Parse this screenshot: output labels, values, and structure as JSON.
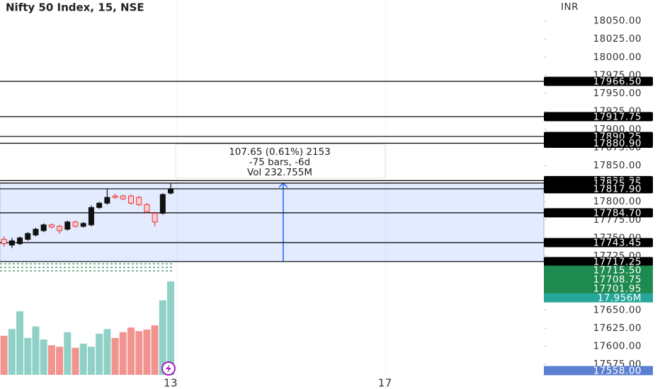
{
  "chart_data": {
    "type": "candlestick",
    "title": "Nifty 50 Index, 15, NSE",
    "currency": "INR",
    "up_color": "#111111",
    "down_color": "#e53935",
    "volume_up_color": "#8fd1c6",
    "volume_down_color": "#f1938f",
    "xlim": [
      -0.5,
      68
    ],
    "xticks": [
      {
        "value": 21,
        "label": "13"
      },
      {
        "value": 48,
        "label": "17"
      }
    ],
    "ylim": [
      17541,
      18079
    ],
    "yticks": [
      {
        "value": 18050,
        "label": "18050.00"
      },
      {
        "value": 18025,
        "label": "18025.00"
      },
      {
        "value": 18000,
        "label": "18000.00"
      },
      {
        "value": 17975,
        "label": "17975.00"
      },
      {
        "value": 17950,
        "label": "17950.00"
      },
      {
        "value": 17925,
        "label": "17925.00"
      },
      {
        "value": 17900,
        "label": "17900.00"
      },
      {
        "value": 17875,
        "label": "17875.00"
      },
      {
        "value": 17850,
        "label": "17850.00"
      },
      {
        "value": 17825,
        "label": "17825.00"
      },
      {
        "value": 17800,
        "label": "17800.00"
      },
      {
        "value": 17775,
        "label": "17775.00"
      },
      {
        "value": 17750,
        "label": "17750.00"
      },
      {
        "value": 17725,
        "label": "17725.00"
      },
      {
        "value": 17700,
        "label": "17700.00"
      },
      {
        "value": 17675,
        "label": "17675.00"
      },
      {
        "value": 17650,
        "label": "17650.00"
      },
      {
        "value": 17625,
        "label": "17625.00"
      },
      {
        "value": 17600,
        "label": "17600.00"
      },
      {
        "value": 17575,
        "label": "17575.00"
      }
    ],
    "grid": false,
    "open": [
      17748,
      17740,
      17742,
      17748,
      17754,
      17760,
      17768,
      17766,
      17762,
      17772,
      17766,
      17768,
      17792,
      17798,
      17808,
      17808,
      17808,
      17806,
      17796,
      17784,
      17784,
      17812
    ],
    "high": [
      17752,
      17750,
      17752,
      17758,
      17764,
      17770,
      17770,
      17768,
      17774,
      17774,
      17772,
      17795,
      17800,
      17818,
      17811,
      17810,
      17810,
      17808,
      17798,
      17786,
      17812,
      17825
    ],
    "low": [
      17738,
      17736,
      17740,
      17746,
      17752,
      17758,
      17763,
      17756,
      17760,
      17764,
      17764,
      17766,
      17790,
      17796,
      17804,
      17802,
      17796,
      17794,
      17784,
      17766,
      17782,
      17810
    ],
    "close": [
      17742,
      17746,
      17750,
      17756,
      17762,
      17768,
      17765,
      17760,
      17772,
      17766,
      17770,
      17792,
      17798,
      17806,
      17806,
      17804,
      17798,
      17796,
      17786,
      17772,
      17810,
      17818
    ],
    "volume_ylim": [
      0,
      72
    ],
    "volume": [
      7.5,
      8.8,
      12.2,
      7.1,
      9.3,
      6.8,
      5.7,
      5.4,
      8.2,
      5.2,
      6.0,
      5.4,
      7.9,
      8.8,
      7.1,
      8.2,
      9.1,
      8.4,
      8.7,
      9.5,
      14.3,
      17.956
    ],
    "volume_label": {
      "value": 17.956,
      "label": "17.956M"
    },
    "levels": [
      {
        "value": 17966.5,
        "label": "17966.50"
      },
      {
        "value": 17917.75,
        "label": "17917.75"
      },
      {
        "value": 17890.25,
        "label": "17890.25"
      },
      {
        "value": 17880.9,
        "label": "17880.90"
      },
      {
        "value": 17829.2,
        "label": "17829.20"
      },
      {
        "value": 17825.75,
        "label": "17825.75"
      },
      {
        "value": 17817.9,
        "label": "17817.90"
      },
      {
        "value": 17784.7,
        "label": "17784.70"
      },
      {
        "value": 17743.45,
        "label": "17743.45"
      },
      {
        "value": 17717.25,
        "label": "17717.25"
      }
    ],
    "green_labels": [
      {
        "value": 17715.5,
        "label": "17715.50"
      },
      {
        "value": 17708.75,
        "label": "17708.75"
      },
      {
        "value": 17701.95,
        "label": "17701.95"
      }
    ],
    "last_label": {
      "value": 17558,
      "label": "17558.00"
    },
    "measure_text": [
      "107.65 (0.61%) 2153",
      "-75 bars, -6d",
      "Vol 232.755M"
    ]
  }
}
